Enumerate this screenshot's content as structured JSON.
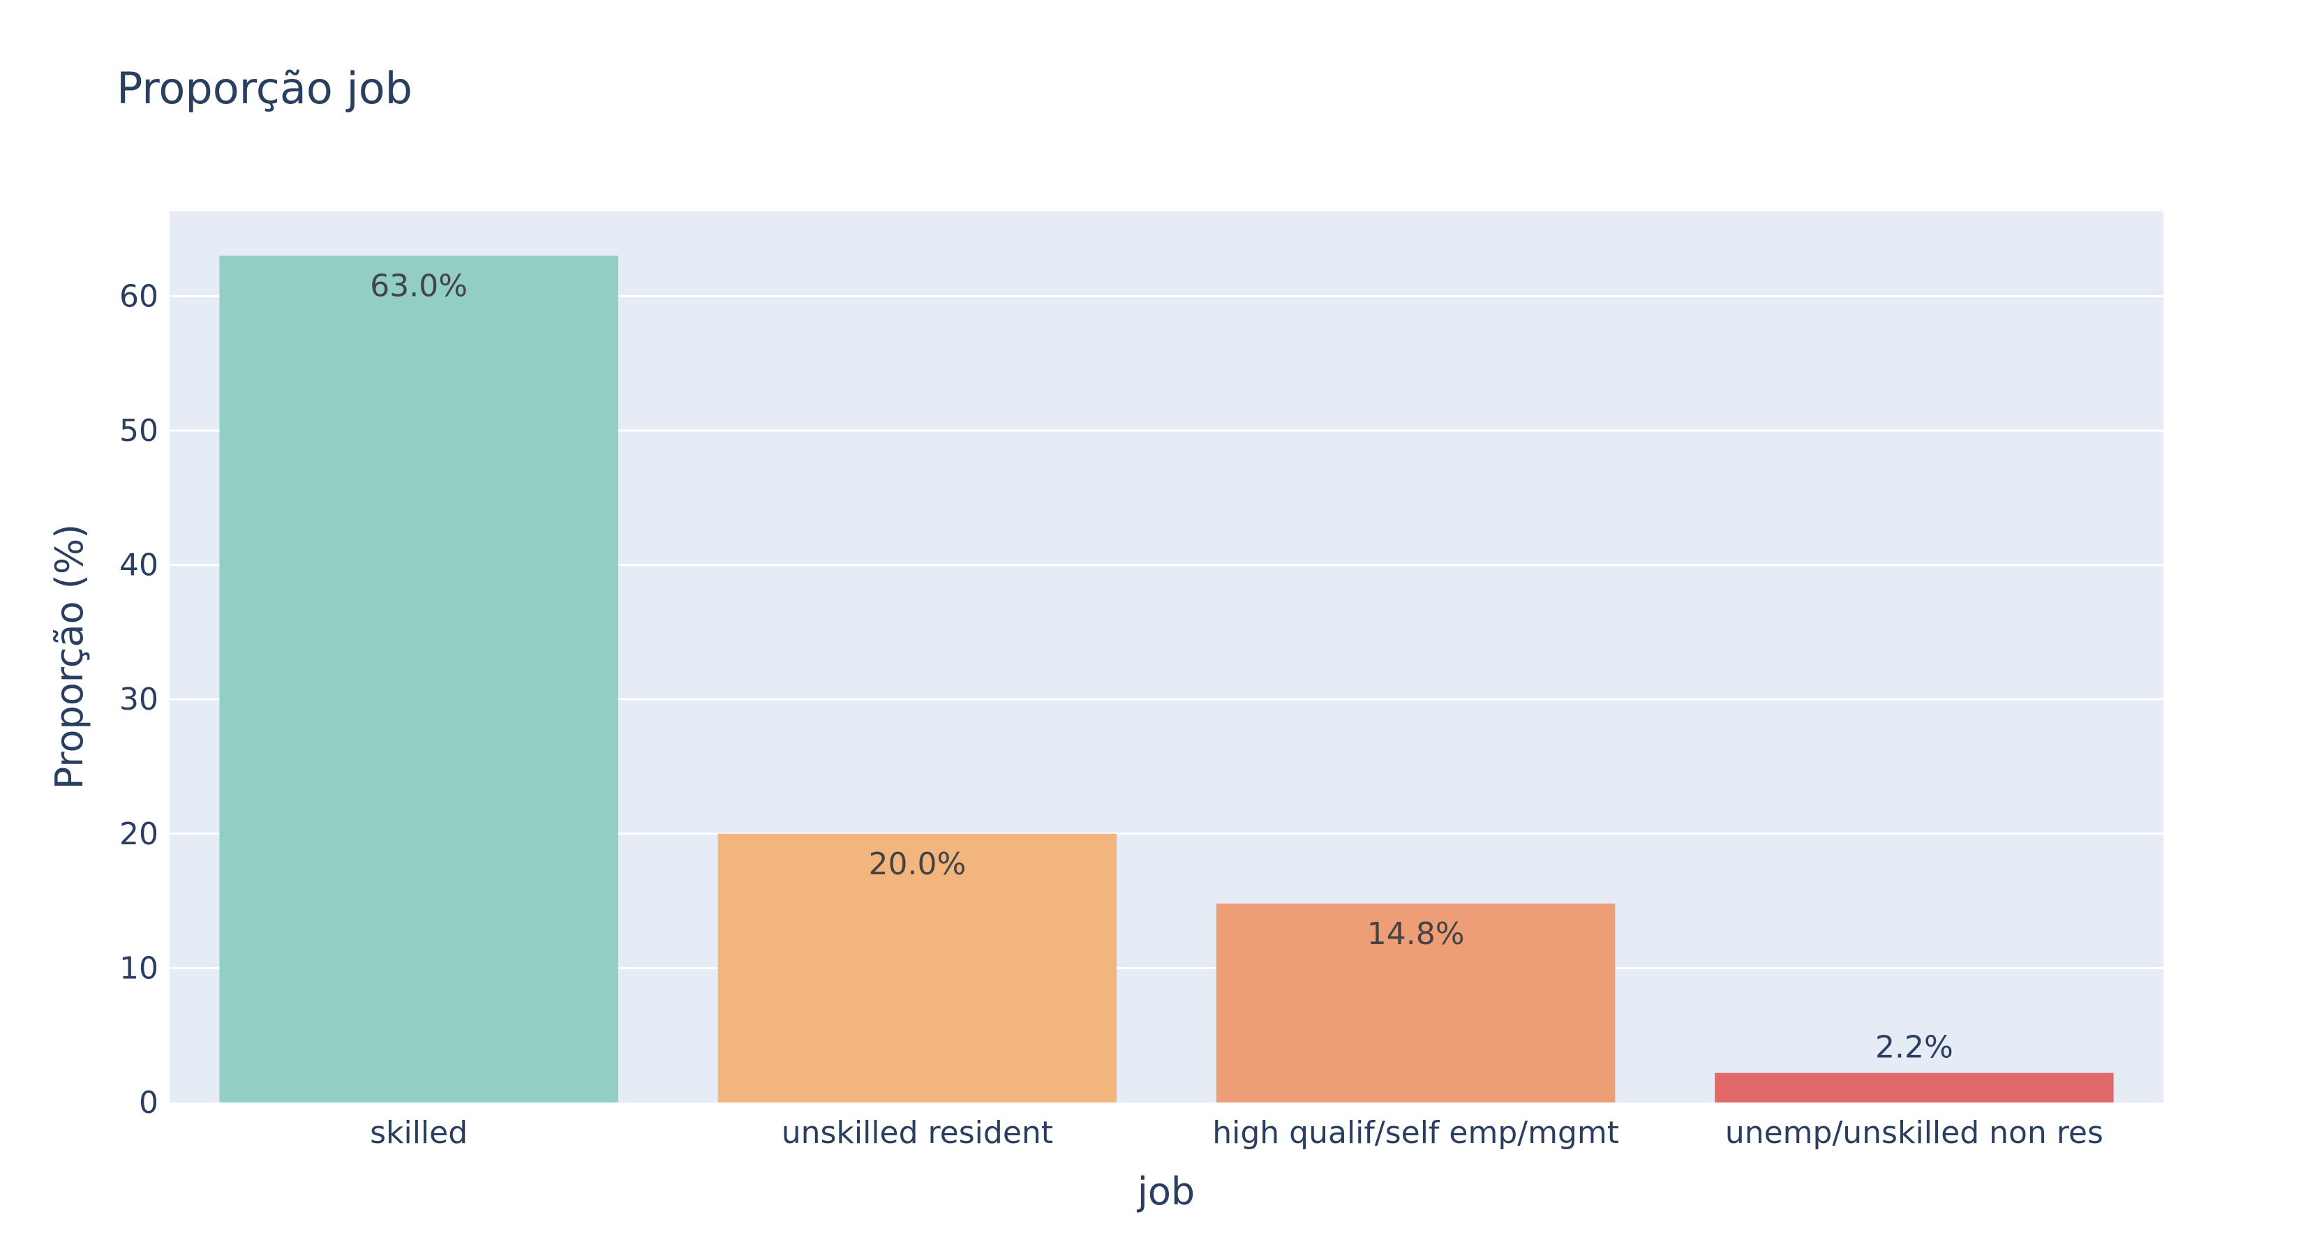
{
  "chart_data": {
    "type": "bar",
    "title": "Proporção job",
    "xlabel": "job",
    "ylabel": "Proporção (%)",
    "categories": [
      "skilled",
      "unskilled resident",
      "high qualif/self emp/mgmt",
      "unemp/unskilled non res"
    ],
    "values": [
      63.0,
      20.0,
      14.8,
      2.2
    ],
    "data_labels": [
      "63.0%",
      "20.0%",
      "14.8%",
      "2.2%"
    ],
    "colors": [
      "#93cec4",
      "#f3b57e",
      "#ed9e77",
      "#e16868"
    ],
    "ylim": [
      0,
      66.3
    ],
    "yticks": [
      0,
      10,
      20,
      30,
      40,
      50,
      60
    ],
    "grid": true,
    "legend": "none",
    "plot_background": "#e5ecf6",
    "text_color": "#2a3f5f"
  }
}
